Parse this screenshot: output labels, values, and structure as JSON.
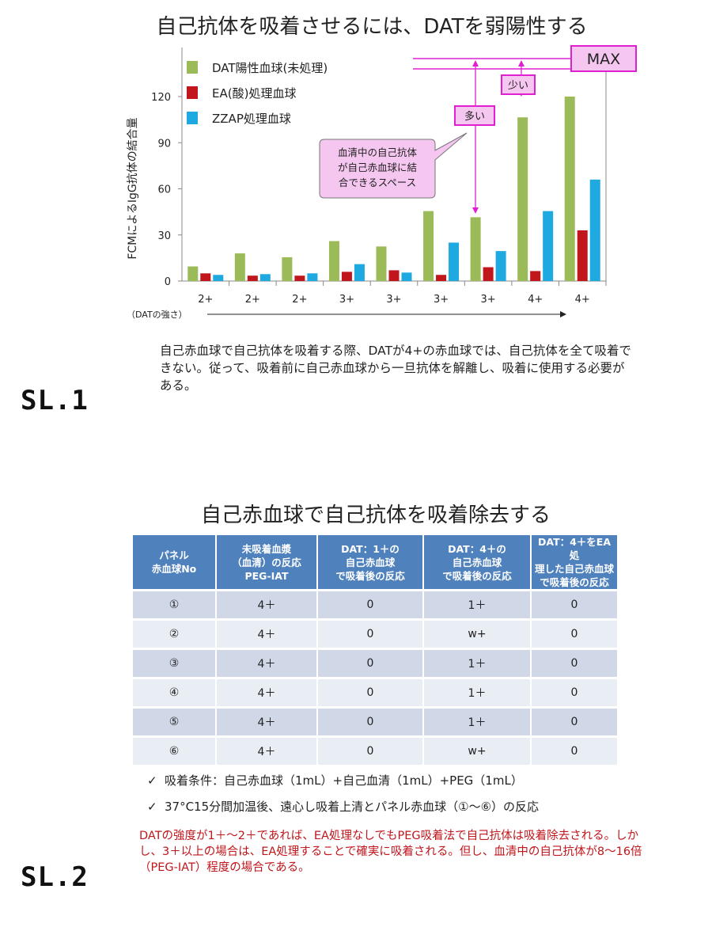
{
  "sl1": {
    "title": "自己抗体を吸着させるには、DATを弱陽性する",
    "label": "SL.1",
    "caption": "自己赤血球で自己抗体を吸着する際、DATが4+の赤血球では、自己抗体を全て吸着できない。従って、吸着前に自己赤血球から一旦抗体を解離し、吸着に使用する必要がある。",
    "annotations": {
      "max": "MAX",
      "little": "少い",
      "many": "多い",
      "callout": [
        "血清中の自己抗体",
        "が自己赤血球に結",
        "合できるスペース"
      ]
    }
  },
  "chart_data": {
    "type": "bar",
    "ylabel": "FCMによるIgG抗体の結合量",
    "xlabel": "（DATの強さ）",
    "ylim": [
      0,
      120
    ],
    "yticks": [
      0,
      30,
      60,
      90,
      120
    ],
    "categories": [
      "2+",
      "2+",
      "2+",
      "3+",
      "3+",
      "3+",
      "3+",
      "4+",
      "4+"
    ],
    "series": [
      {
        "name": "DAT陽性血球(未処理)",
        "color": "#9bbb59",
        "values": [
          9.5,
          18,
          15.5,
          26,
          22.5,
          45.5,
          41.5,
          106.5,
          120
        ]
      },
      {
        "name": "EA(酸)処理血球",
        "color": "#c0161c",
        "values": [
          5,
          3.5,
          3.5,
          6,
          7,
          4,
          9,
          6.5,
          33
        ]
      },
      {
        "name": "ZZAP処理血球",
        "color": "#1ea9e1",
        "values": [
          4,
          4.5,
          5,
          11,
          5.5,
          25,
          19.5,
          45.5,
          66
        ]
      }
    ],
    "legend": "top-left"
  },
  "sl2": {
    "title": "自己赤血球で自己抗体を吸着除去する",
    "label": "SL.2",
    "table": {
      "headers": [
        [
          "パネル",
          "赤血球No"
        ],
        [
          "未吸着血漿",
          "（血清）の反応",
          "PEG-IAT"
        ],
        [
          "DAT：1＋の",
          "自己赤血球",
          "で吸着後の反応"
        ],
        [
          "DAT：4＋の",
          "自己赤血球",
          "で吸着後の反応"
        ],
        [
          "DAT：4＋をEA処",
          "理した自己赤血球",
          "で吸着後の反応"
        ]
      ],
      "rows": [
        [
          "①",
          "4＋",
          "0",
          "1＋",
          "0"
        ],
        [
          "②",
          "4＋",
          "0",
          "w+",
          "0"
        ],
        [
          "③",
          "4＋",
          "0",
          "1＋",
          "0"
        ],
        [
          "④",
          "4＋",
          "0",
          "1＋",
          "0"
        ],
        [
          "⑤",
          "4＋",
          "0",
          "1＋",
          "0"
        ],
        [
          "⑥",
          "4＋",
          "0",
          "w+",
          "0"
        ]
      ]
    },
    "bullets": [
      "吸着条件：自己赤血球（1mL）+自己血清（1mL）+PEG（1mL）",
      "37°C15分間加温後、遠心し吸着上清とパネル赤血球（①～⑥）の反応"
    ],
    "note": "DATの強度が1＋～2＋であれば、EA処理なしでもPEG吸着法で自己抗体は吸着除去される。しかし、3＋以上の場合は、EA処理することで確実に吸着される。但し、血清中の自己抗体が8～16倍（PEG-IAT）程度の場合である。"
  }
}
